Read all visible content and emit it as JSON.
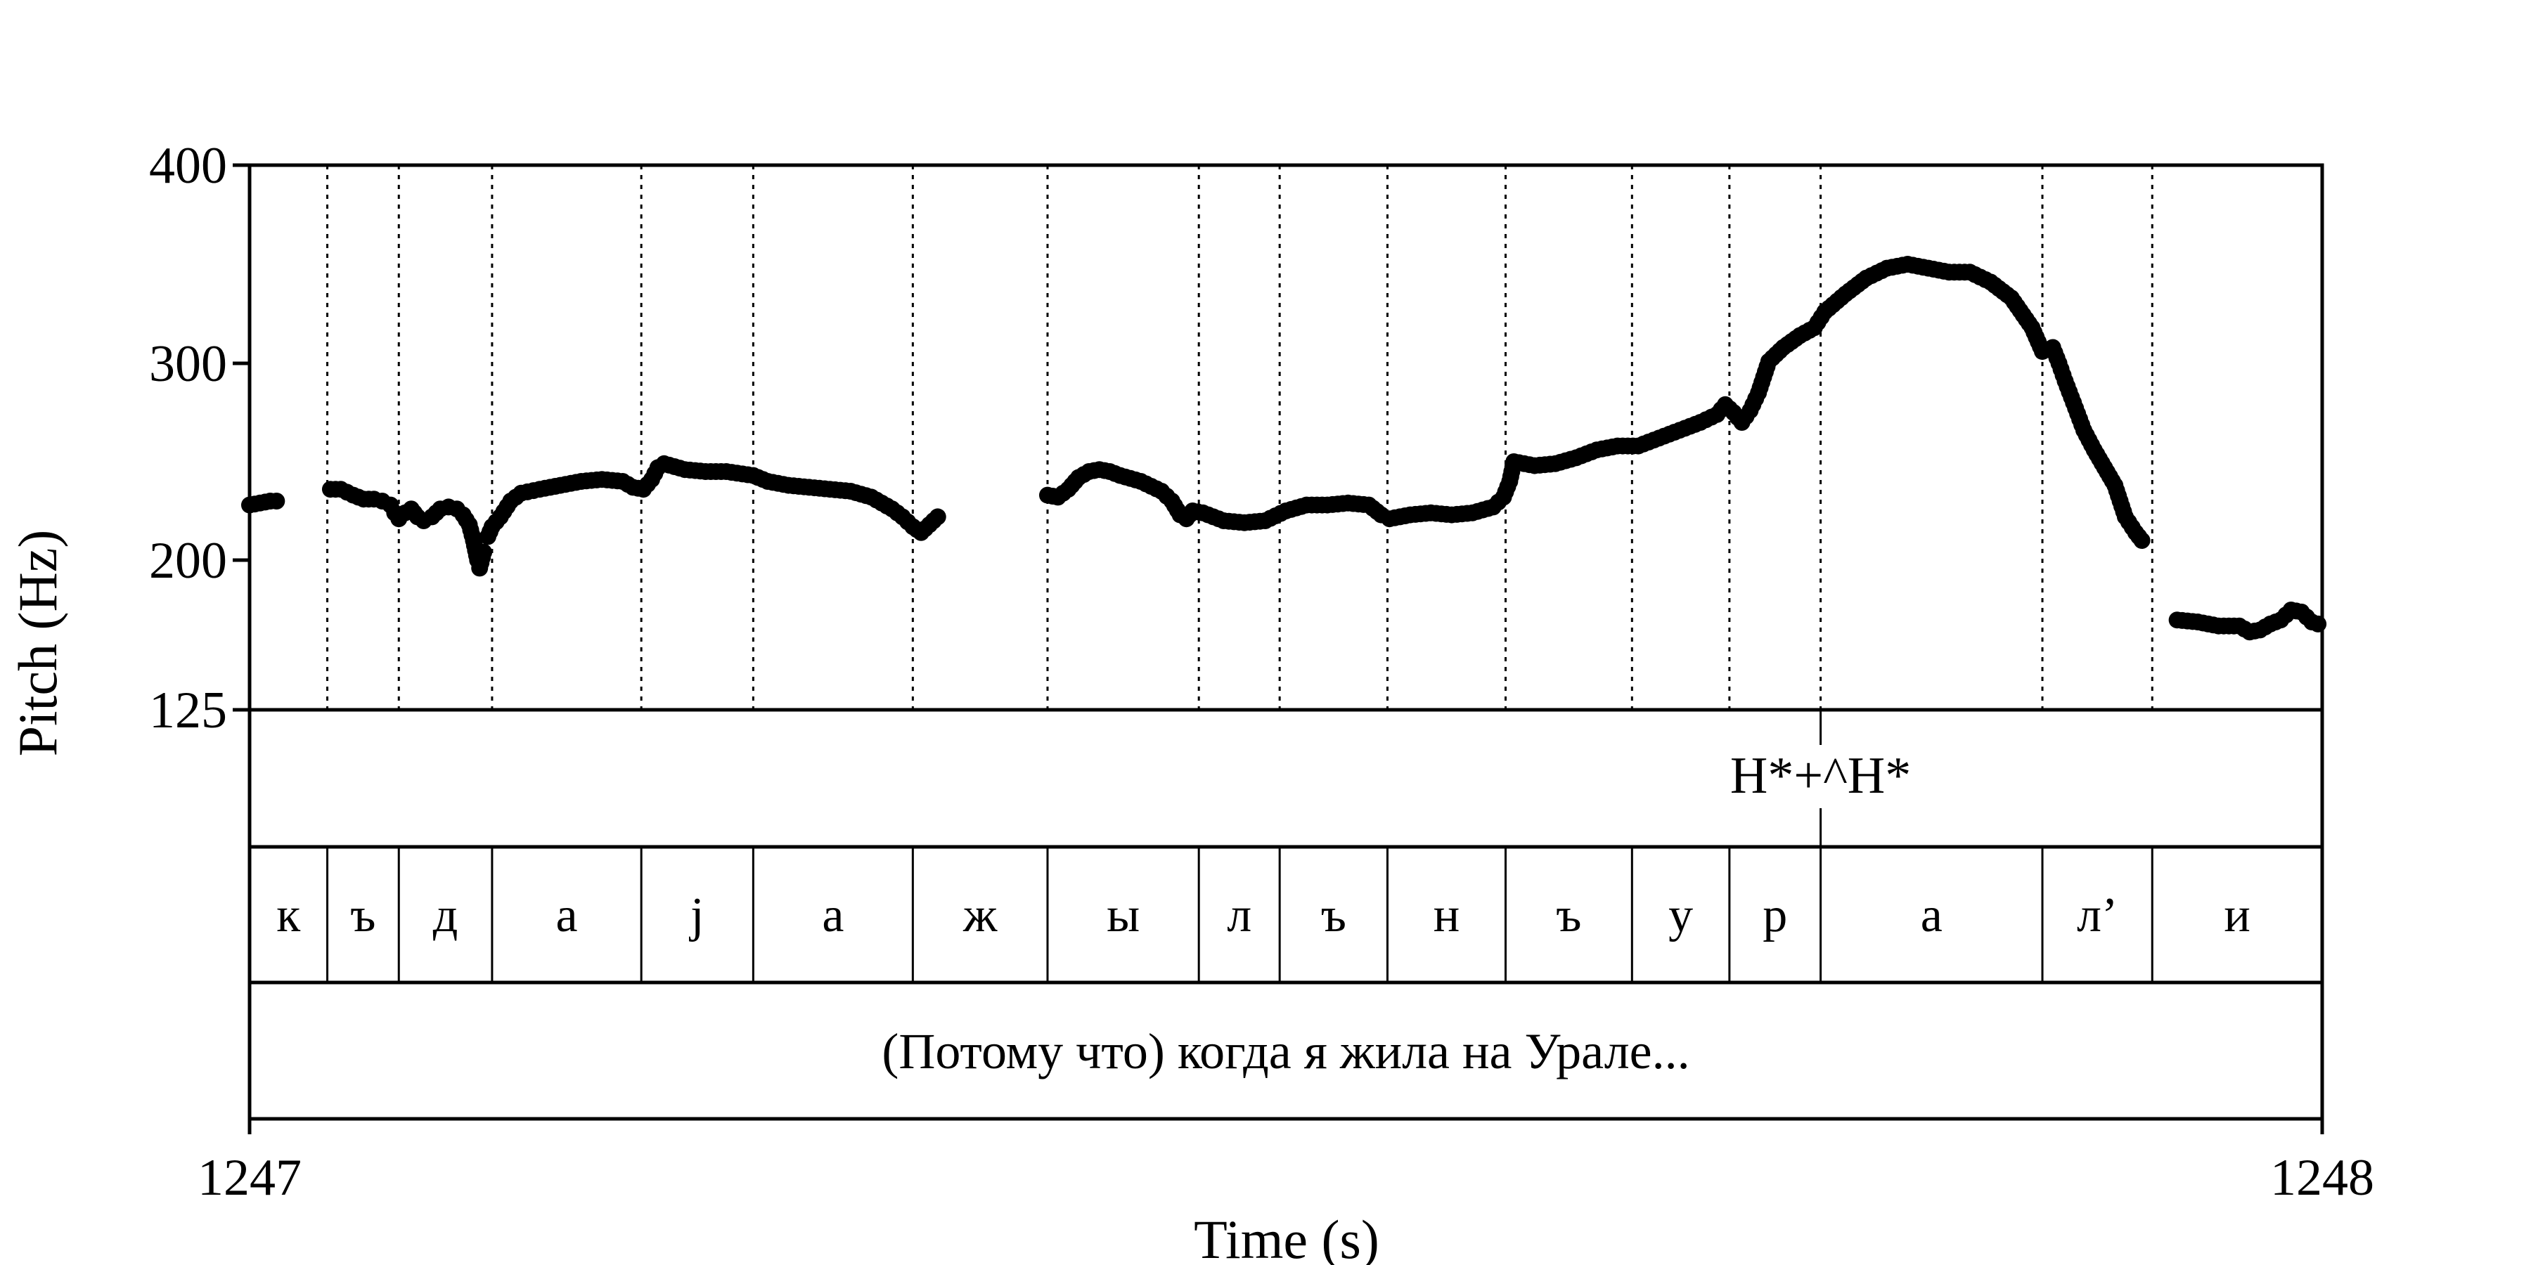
{
  "chart_data": {
    "type": "scatter",
    "xlabel": "Time (s)",
    "ylabel": "Pitch (Hz)",
    "xlim": [
      1247,
      1248
    ],
    "ylim": [
      125,
      400
    ],
    "x_ticks": [
      "1247",
      "1248"
    ],
    "y_ticks": [
      {
        "value": 400,
        "label": "400"
      },
      {
        "value": 300,
        "label": "300"
      },
      {
        "value": 200,
        "label": "200"
      },
      {
        "value": 125,
        "label": "125"
      }
    ],
    "grid": false,
    "segment_boundaries": [
      1247.0375,
      1247.072,
      1247.117,
      1247.189,
      1247.243,
      1247.32,
      1247.385,
      1247.458,
      1247.497,
      1247.549,
      1247.606,
      1247.667,
      1247.714,
      1247.758,
      1247.865,
      1247.918
    ],
    "series": [
      {
        "values": [
          [
            1247.0,
            228
          ],
          [
            1247.005,
            229
          ],
          [
            1247.01,
            230
          ],
          [
            1247.013,
            230
          ]
        ]
      },
      {
        "values": [
          [
            1247.039,
            236
          ],
          [
            1247.044,
            236
          ],
          [
            1247.05,
            233
          ],
          [
            1247.055,
            231
          ],
          [
            1247.06,
            231
          ],
          [
            1247.064,
            230
          ],
          [
            1247.068,
            228
          ],
          [
            1247.07,
            224
          ],
          [
            1247.072,
            221
          ],
          [
            1247.075,
            224
          ],
          [
            1247.078,
            226
          ],
          [
            1247.081,
            222
          ],
          [
            1247.084,
            220
          ],
          [
            1247.088,
            222
          ],
          [
            1247.092,
            226
          ],
          [
            1247.096,
            227
          ],
          [
            1247.1,
            226
          ],
          [
            1247.103,
            223
          ],
          [
            1247.106,
            218
          ],
          [
            1247.108,
            210
          ],
          [
            1247.11,
            200
          ],
          [
            1247.111,
            196
          ],
          [
            1247.113,
            204
          ]
        ]
      },
      {
        "values": [
          [
            1247.115,
            212
          ],
          [
            1247.117,
            217
          ],
          [
            1247.121,
            222
          ],
          [
            1247.126,
            230
          ],
          [
            1247.131,
            234
          ],
          [
            1247.14,
            236
          ],
          [
            1247.15,
            238
          ],
          [
            1247.16,
            240
          ],
          [
            1247.17,
            241
          ],
          [
            1247.18,
            240
          ],
          [
            1247.185,
            237
          ],
          [
            1247.19,
            236
          ],
          [
            1247.194,
            241
          ],
          [
            1247.197,
            247
          ],
          [
            1247.2,
            249
          ],
          [
            1247.21,
            246
          ],
          [
            1247.22,
            245
          ],
          [
            1247.23,
            245
          ],
          [
            1247.243,
            243
          ],
          [
            1247.25,
            240
          ],
          [
            1247.26,
            238
          ],
          [
            1247.27,
            237
          ],
          [
            1247.28,
            236
          ],
          [
            1247.29,
            235
          ],
          [
            1247.3,
            232
          ],
          [
            1247.31,
            226
          ],
          [
            1247.315,
            222
          ],
          [
            1247.32,
            217
          ],
          [
            1247.324,
            214
          ],
          [
            1247.328,
            218
          ],
          [
            1247.332,
            222
          ]
        ]
      },
      {
        "values": [
          [
            1247.385,
            233
          ],
          [
            1247.39,
            232
          ],
          [
            1247.395,
            236
          ],
          [
            1247.4,
            242
          ],
          [
            1247.405,
            245
          ],
          [
            1247.41,
            246
          ],
          [
            1247.415,
            245
          ],
          [
            1247.42,
            243
          ],
          [
            1247.43,
            240
          ],
          [
            1247.44,
            235
          ],
          [
            1247.445,
            230
          ],
          [
            1247.449,
            223
          ],
          [
            1247.452,
            221
          ],
          [
            1247.455,
            225
          ],
          [
            1247.46,
            224
          ],
          [
            1247.47,
            220
          ],
          [
            1247.48,
            219
          ],
          [
            1247.49,
            220
          ],
          [
            1247.5,
            225
          ],
          [
            1247.51,
            228
          ],
          [
            1247.52,
            228
          ],
          [
            1247.53,
            229
          ],
          [
            1247.54,
            228
          ],
          [
            1247.546,
            223
          ],
          [
            1247.55,
            221
          ],
          [
            1247.56,
            223
          ],
          [
            1247.57,
            224
          ],
          [
            1247.58,
            223
          ],
          [
            1247.59,
            224
          ],
          [
            1247.6,
            227
          ],
          [
            1247.605,
            232
          ],
          [
            1247.608,
            240
          ],
          [
            1247.61,
            250
          ],
          [
            1247.62,
            248
          ],
          [
            1247.63,
            249
          ],
          [
            1247.64,
            252
          ],
          [
            1247.65,
            256
          ],
          [
            1247.66,
            258
          ],
          [
            1247.67,
            258
          ],
          [
            1247.68,
            262
          ],
          [
            1247.69,
            266
          ],
          [
            1247.7,
            270
          ],
          [
            1247.708,
            274
          ],
          [
            1247.712,
            279
          ],
          [
            1247.716,
            275
          ],
          [
            1247.72,
            270
          ],
          [
            1247.724,
            276
          ],
          [
            1247.728,
            285
          ],
          [
            1247.733,
            301
          ],
          [
            1247.74,
            308
          ],
          [
            1247.748,
            314
          ],
          [
            1247.755,
            318
          ],
          [
            1247.76,
            326
          ],
          [
            1247.77,
            335
          ],
          [
            1247.78,
            343
          ],
          [
            1247.79,
            348
          ],
          [
            1247.8,
            350
          ],
          [
            1247.81,
            348
          ],
          [
            1247.82,
            346
          ],
          [
            1247.83,
            346
          ],
          [
            1247.84,
            341
          ],
          [
            1247.85,
            333
          ],
          [
            1247.86,
            318
          ],
          [
            1247.865,
            306
          ],
          [
            1247.87,
            308
          ],
          [
            1247.873,
            300
          ],
          [
            1247.876,
            291
          ],
          [
            1247.88,
            280
          ],
          [
            1247.885,
            266
          ],
          [
            1247.89,
            256
          ],
          [
            1247.895,
            247
          ],
          [
            1247.9,
            238
          ],
          [
            1247.905,
            222
          ],
          [
            1247.91,
            214
          ],
          [
            1247.913,
            210
          ]
        ]
      },
      {
        "values": [
          [
            1247.93,
            170
          ],
          [
            1247.94,
            169
          ],
          [
            1247.95,
            167
          ],
          [
            1247.96,
            167
          ],
          [
            1247.965,
            164
          ],
          [
            1247.97,
            165
          ],
          [
            1247.975,
            168
          ],
          [
            1247.98,
            170
          ],
          [
            1247.985,
            175
          ],
          [
            1247.99,
            174
          ],
          [
            1247.995,
            169
          ],
          [
            1247.998,
            168
          ]
        ]
      }
    ]
  },
  "tiers": {
    "tones": {
      "boundary": 1247.758,
      "label": "H*+^H*"
    },
    "segments": [
      {
        "label": "к"
      },
      {
        "label": "ъ"
      },
      {
        "label": "д"
      },
      {
        "label": "а"
      },
      {
        "label": "j"
      },
      {
        "label": "а"
      },
      {
        "label": "ж"
      },
      {
        "label": "ы"
      },
      {
        "label": "л"
      },
      {
        "label": "ъ"
      },
      {
        "label": "н"
      },
      {
        "label": "ъ"
      },
      {
        "label": "у"
      },
      {
        "label": "р"
      },
      {
        "label": "а"
      },
      {
        "label": "л’"
      },
      {
        "label": "и"
      }
    ],
    "gloss": "(Потому что) когда я жила на Урале..."
  }
}
